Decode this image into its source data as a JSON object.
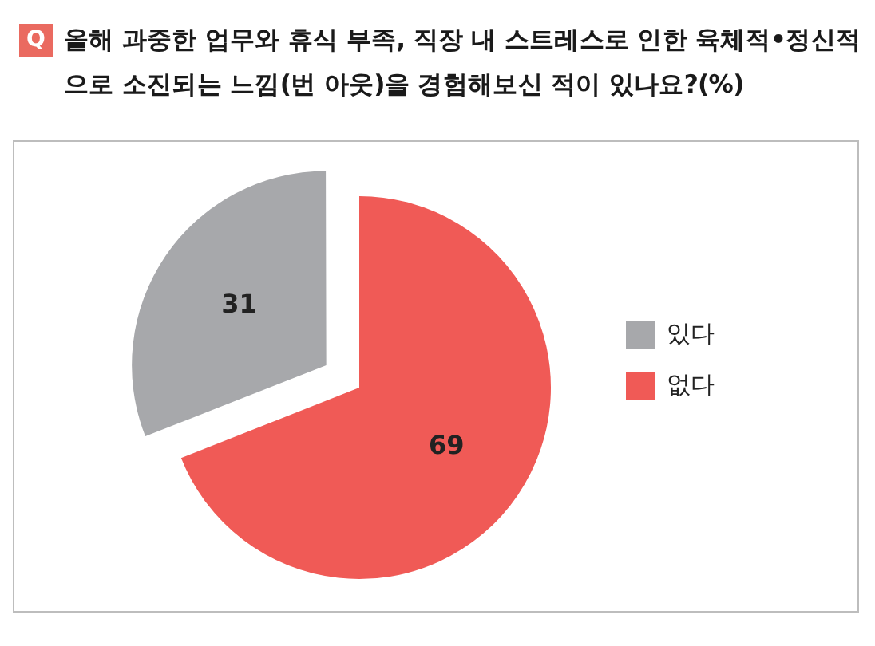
{
  "chart_data": {
    "type": "pie",
    "title": "올해 과중한 업무와 휴식 부족, 직장 내 스트레스로 인한 육체적•정신적 으로 소진되는 느낌(번 아웃)을 경험해보신 적이 있나요?(%)",
    "annotations": [
      "Q"
    ],
    "categories": [
      "있다",
      "없다"
    ],
    "values": [
      31,
      69
    ],
    "colors": [
      "#a7a8ab",
      "#f05a56"
    ],
    "data_labels": true,
    "legend": "right"
  }
}
